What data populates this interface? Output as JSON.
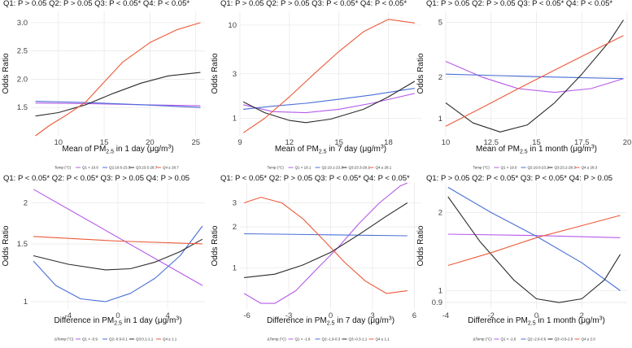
{
  "colors": {
    "purple": "#b55be8",
    "blue": "#4a6ed8",
    "black": "#2b2b2b",
    "red": "#ec5a3a"
  },
  "chart_data": [
    {
      "type": "line",
      "title": "Q1:  P > 0.05  Q2:  P > 0.05  Q3:  P < 0.05*  Q4:  P < 0.05*",
      "xlabel": "Mean of PM<sub>2.5</sub> in 1 day (μg/m<sup>3</sup>)",
      "ylabel": "Odds Ratio",
      "xlim": [
        7,
        26
      ],
      "ylim": [
        1.0,
        3.2
      ],
      "ylog": false,
      "xticks": [
        10,
        15,
        20,
        25
      ],
      "yticks": [
        1.5,
        2.0,
        2.5,
        3.0
      ],
      "legend": {
        "title": "Temp (°C)",
        "entries": [
          "Q1 < 10.6",
          "Q2:10.6-23.5",
          "Q3:23.5-28.7",
          "Q4 ≥ 28.7"
        ]
      },
      "series": [
        {
          "name": "Q1 < 10.6",
          "color": "purple",
          "points": [
            [
              7.5,
              1.58
            ],
            [
              13,
              1.57
            ],
            [
              19,
              1.55
            ],
            [
              25.5,
              1.53
            ]
          ]
        },
        {
          "name": "Q2:10.6-23.5",
          "color": "blue",
          "points": [
            [
              7.5,
              1.61
            ],
            [
              13,
              1.59
            ],
            [
              19,
              1.55
            ],
            [
              25.5,
              1.5
            ]
          ]
        },
        {
          "name": "Q3:23.5-28.7",
          "color": "black",
          "points": [
            [
              7.5,
              1.35
            ],
            [
              10,
              1.41
            ],
            [
              13,
              1.55
            ],
            [
              16,
              1.75
            ],
            [
              19,
              1.93
            ],
            [
              22,
              2.06
            ],
            [
              25.5,
              2.12
            ]
          ]
        },
        {
          "name": "Q4 ≥ 28.7",
          "color": "red",
          "points": [
            [
              7.5,
              1.0
            ],
            [
              9,
              1.18
            ],
            [
              11,
              1.38
            ],
            [
              13,
              1.6
            ],
            [
              15,
              1.95
            ],
            [
              17,
              2.3
            ],
            [
              20,
              2.65
            ],
            [
              23,
              2.88
            ],
            [
              25.5,
              3.0
            ]
          ]
        }
      ]
    },
    {
      "type": "line",
      "title": "Q1:  P > 0.05  Q2:  P > 0.05  Q3:  P < 0.05*  Q4:  P < 0.05*",
      "xlabel": "Mean of PM<sub>2.5</sub> in 7 day (μg/m<sup>3</sup>)",
      "ylabel": "Odds Ratio",
      "xlim": [
        9,
        20
      ],
      "ylim": [
        0.65,
        14
      ],
      "ylog": true,
      "xticks": [
        9,
        12,
        15,
        18
      ],
      "yticks": [
        1,
        3,
        10
      ],
      "legend": {
        "title": "Temp (°C)",
        "entries": [
          "Q1 < 19.1",
          "Q2:19.1-23.3",
          "Q3:23.3-28.1",
          "Q4 ≥ 28.1"
        ]
      },
      "series": [
        {
          "name": "Q1 < 19.1",
          "color": "purple",
          "points": [
            [
              9.2,
              1.4
            ],
            [
              11,
              1.18
            ],
            [
              13,
              1.15
            ],
            [
              15,
              1.25
            ],
            [
              17,
              1.45
            ],
            [
              19.6,
              1.85
            ]
          ]
        },
        {
          "name": "Q2:19.1-23.3",
          "color": "blue",
          "points": [
            [
              9.2,
              1.25
            ],
            [
              11,
              1.35
            ],
            [
              13,
              1.45
            ],
            [
              15,
              1.6
            ],
            [
              17,
              1.78
            ],
            [
              19.6,
              2.1
            ]
          ]
        },
        {
          "name": "Q3:23.3-28.1",
          "color": "black",
          "points": [
            [
              9.2,
              1.5
            ],
            [
              10.5,
              1.15
            ],
            [
              12,
              0.95
            ],
            [
              13,
              0.9
            ],
            [
              14.5,
              0.98
            ],
            [
              16.5,
              1.25
            ],
            [
              18,
              1.7
            ],
            [
              19.6,
              2.5
            ]
          ]
        },
        {
          "name": "Q4 ≥ 28.1",
          "color": "red",
          "points": [
            [
              9.2,
              0.7
            ],
            [
              10.5,
              1.0
            ],
            [
              12,
              1.7
            ],
            [
              13.5,
              3.0
            ],
            [
              15,
              5.2
            ],
            [
              16.5,
              8.5
            ],
            [
              18,
              11.5
            ],
            [
              19.6,
              10.5
            ]
          ]
        }
      ]
    },
    {
      "type": "line",
      "title": "Q1:  P > 0.05  Q2:  P > 0.05  Q3:  P < 0.05*  Q4:  P < 0.05*",
      "xlabel": "Mean of PM<sub>2.5</sub> in 1 month (μg/m<sup>3</sup>)",
      "ylabel": "Odds Ratio",
      "xlim": [
        10,
        20
      ],
      "ylim": [
        0.75,
        6
      ],
      "ylog": true,
      "xticks": [
        10.0,
        12.5,
        15.0,
        17.5,
        20.0
      ],
      "yticks": [
        1,
        2,
        5
      ],
      "legend": {
        "title": "Temp (°C)",
        "entries": [
          "Q1 < 19.0",
          "Q2:19.0-23.2",
          "Q3:23.2-28.3",
          "Q4 ≥ 28.3"
        ]
      },
      "series": [
        {
          "name": "Q1 < 19.0",
          "color": "purple",
          "points": [
            [
              10,
              2.6
            ],
            [
              12,
              2.0
            ],
            [
              14,
              1.65
            ],
            [
              16,
              1.55
            ],
            [
              18,
              1.65
            ],
            [
              19.8,
              1.95
            ]
          ]
        },
        {
          "name": "Q2:19.0-23.2",
          "color": "blue",
          "points": [
            [
              10,
              2.1
            ],
            [
              13,
              2.05
            ],
            [
              16,
              2.0
            ],
            [
              19.8,
              1.95
            ]
          ]
        },
        {
          "name": "Q3:23.2-28.3",
          "color": "black",
          "points": [
            [
              10,
              1.3
            ],
            [
              11.5,
              0.93
            ],
            [
              13,
              0.8
            ],
            [
              14.5,
              0.9
            ],
            [
              16,
              1.3
            ],
            [
              17.5,
              2.1
            ],
            [
              19,
              3.6
            ],
            [
              19.8,
              5.2
            ]
          ]
        },
        {
          "name": "Q4 ≥ 28.3",
          "color": "red",
          "points": [
            [
              10,
              0.88
            ],
            [
              12,
              1.2
            ],
            [
              14,
              1.65
            ],
            [
              16,
              2.25
            ],
            [
              18,
              3.05
            ],
            [
              19.8,
              4.0
            ]
          ]
        }
      ]
    },
    {
      "type": "line",
      "title": "Q1:  P < 0.05*  Q2:  P < 0.05*  Q3:  P > 0.05  Q4:  P > 0.05",
      "xlabel": "Difference in PM<sub>2.5</sub> in 1 day (μg/m<sup>3</sup>)",
      "ylabel": "Odds Ratio",
      "xlim": [
        -7,
        7
      ],
      "ylim": [
        0.95,
        2.3
      ],
      "ylog": true,
      "xticks": [
        -4,
        0,
        4
      ],
      "yticks": [
        1.0,
        1.5,
        2.0
      ],
      "legend": {
        "title": "ΔTemp (°C)",
        "entries": [
          "Q1 < -0.9",
          "Q2:-0.9-0.1",
          "Q3:0.1-1.1",
          "Q4 ≥ 1.1"
        ]
      },
      "series": [
        {
          "name": "Q1 < -0.9",
          "color": "purple",
          "points": [
            [
              -6.8,
              2.2
            ],
            [
              6.8,
              1.12
            ]
          ]
        },
        {
          "name": "Q2:-0.9-0.1",
          "color": "blue",
          "points": [
            [
              -6.8,
              1.33
            ],
            [
              -5,
              1.12
            ],
            [
              -3,
              1.02
            ],
            [
              -1,
              1.0
            ],
            [
              1,
              1.06
            ],
            [
              3,
              1.18
            ],
            [
              5,
              1.38
            ],
            [
              6.8,
              1.7
            ]
          ]
        },
        {
          "name": "Q3:0.1-1.1",
          "color": "black",
          "points": [
            [
              -6.8,
              1.38
            ],
            [
              -4,
              1.3
            ],
            [
              -1,
              1.25
            ],
            [
              1,
              1.26
            ],
            [
              3,
              1.32
            ],
            [
              5,
              1.42
            ],
            [
              6.8,
              1.55
            ]
          ]
        },
        {
          "name": "Q4 ≥ 1.1",
          "color": "red",
          "points": [
            [
              -6.8,
              1.58
            ],
            [
              0,
              1.53
            ],
            [
              6.8,
              1.5
            ]
          ]
        }
      ]
    },
    {
      "type": "line",
      "title": "Q1:  P < 0.05*  Q2:  P > 0.05  Q3:  P < 0.05*  Q4:  P < 0.05*",
      "xlabel": "Difference in PM<sub>2.5</sub> in 7 day (μg/m<sup>3</sup>)",
      "ylabel": "Odds Ratio",
      "xlim": [
        -6.5,
        6.5
      ],
      "ylim": [
        0.5,
        4.2
      ],
      "ylog": true,
      "xticks": [
        -6,
        -3,
        0,
        3,
        6
      ],
      "yticks": [
        1,
        2,
        3
      ],
      "legend": {
        "title": "ΔTemp (°C)",
        "entries": [
          "Q1 < -1.9",
          "Q2:-1.9-0.3",
          "Q3:-0.3-1.1",
          "Q4 ≥ 1.1"
        ]
      },
      "series": [
        {
          "name": "Q1 < -1.9",
          "color": "purple",
          "points": [
            [
              -6.2,
              0.65
            ],
            [
              -5,
              0.55
            ],
            [
              -4,
              0.55
            ],
            [
              -2.5,
              0.68
            ],
            [
              -1,
              0.98
            ],
            [
              0.5,
              1.4
            ],
            [
              2,
              2.1
            ],
            [
              3.5,
              3.0
            ],
            [
              5,
              4.0
            ],
            [
              5.5,
              4.2
            ]
          ]
        },
        {
          "name": "Q2:-1.9-0.3",
          "color": "blue",
          "points": [
            [
              -6.2,
              1.78
            ],
            [
              0,
              1.75
            ],
            [
              5.5,
              1.72
            ]
          ]
        },
        {
          "name": "Q3:-0.3-1.1",
          "color": "black",
          "points": [
            [
              -6.2,
              0.85
            ],
            [
              -4,
              0.9
            ],
            [
              -2,
              1.05
            ],
            [
              0,
              1.3
            ],
            [
              2,
              1.75
            ],
            [
              4,
              2.4
            ],
            [
              5.5,
              3.0
            ]
          ]
        },
        {
          "name": "Q4 ≥ 1.1",
          "color": "red",
          "points": [
            [
              -6.2,
              3.0
            ],
            [
              -5,
              3.3
            ],
            [
              -3.5,
              3.0
            ],
            [
              -2,
              2.3
            ],
            [
              -0.5,
              1.6
            ],
            [
              1,
              1.1
            ],
            [
              2.5,
              0.8
            ],
            [
              4,
              0.65
            ],
            [
              5.5,
              0.68
            ]
          ]
        }
      ]
    },
    {
      "type": "line",
      "title": "Q1:  P > 0.05  Q2:  P < 0.05*  Q3:  P < 0.05*  Q4:  P > 0.05",
      "xlabel": "Difference in PM<sub>2.5</sub> in 1 month (μg/m<sup>3</sup>)",
      "ylabel": "Odds Ratio",
      "xlim": [
        -4,
        4
      ],
      "ylim": [
        0.85,
        2.6
      ],
      "ylog": true,
      "xticks": [
        -4,
        -2,
        0,
        2
      ],
      "yticks": [
        0.9,
        1.0,
        2.0
      ],
      "legend": {
        "title": "ΔTemp (°C)",
        "entries": [
          "Q1 < -2.6",
          "Q2:-2.6-0.6",
          "Q3:-0.6-2.0",
          "Q4 ≥ 2.0"
        ]
      },
      "series": [
        {
          "name": "Q1 < -2.6",
          "color": "purple",
          "points": [
            [
              -3.9,
              1.65
            ],
            [
              0,
              1.63
            ],
            [
              3.7,
              1.6
            ]
          ]
        },
        {
          "name": "Q2:-2.6-0.6",
          "color": "blue",
          "points": [
            [
              -3.9,
              2.5
            ],
            [
              -2,
              2.0
            ],
            [
              0,
              1.62
            ],
            [
              2,
              1.28
            ],
            [
              3.7,
              1.0
            ]
          ]
        },
        {
          "name": "Q3:-0.6-2.0",
          "color": "black",
          "points": [
            [
              -3.9,
              2.3
            ],
            [
              -2.5,
              1.55
            ],
            [
              -1,
              1.1
            ],
            [
              0,
              0.93
            ],
            [
              1,
              0.9
            ],
            [
              2,
              0.93
            ],
            [
              3,
              1.1
            ],
            [
              3.7,
              1.38
            ]
          ]
        },
        {
          "name": "Q4 ≥ 2.0",
          "color": "red",
          "points": [
            [
              -3.9,
              1.25
            ],
            [
              -2,
              1.4
            ],
            [
              0,
              1.6
            ],
            [
              2,
              1.78
            ],
            [
              3.7,
              1.95
            ]
          ]
        }
      ]
    }
  ]
}
